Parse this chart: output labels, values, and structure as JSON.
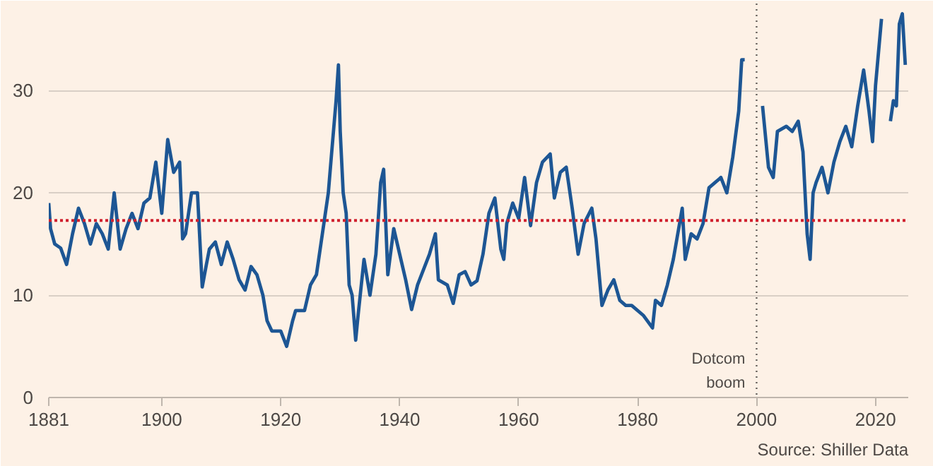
{
  "chart_data": {
    "type": "line",
    "annotations": [
      "Source: Shiller Data"
    ],
    "x": [
      1881,
      1881.3,
      1882,
      1883,
      1884,
      1885,
      1886,
      1887,
      1888,
      1889,
      1890,
      1891,
      1892,
      1893,
      1894,
      1895,
      1896,
      1897,
      1898,
      1899,
      1900,
      1901,
      1902,
      1903,
      1903.5,
      1904,
      1905,
      1906,
      1906.8,
      1907.5,
      1908,
      1909,
      1910,
      1911,
      1912,
      1913,
      1914,
      1915,
      1916,
      1917,
      1917.7,
      1918.5,
      1920,
      1921,
      1922,
      1922.5,
      1924,
      1925,
      1926,
      1927,
      1928,
      1928.5,
      1929.3,
      1929.7,
      1930,
      1930.5,
      1931,
      1931.5,
      1932,
      1932.6,
      1933,
      1934,
      1935,
      1936,
      1936.8,
      1937.3,
      1938,
      1939,
      1940,
      1941,
      1942,
      1943,
      1945,
      1946,
      1946.5,
      1948,
      1949,
      1950,
      1951,
      1952,
      1953,
      1954,
      1955,
      1956,
      1957,
      1957.5,
      1958,
      1959,
      1960,
      1961,
      1962,
      1963,
      1964,
      1965.3,
      1966,
      1967,
      1968,
      1969,
      1970,
      1971,
      1972.3,
      1973,
      1974,
      1975,
      1976,
      1977,
      1978,
      1979,
      1981,
      1982.5,
      1983,
      1984,
      1985,
      1986,
      1987.5,
      1988,
      1989,
      1990,
      1991,
      1992,
      1994,
      1995,
      1996,
      1997,
      1997.5,
      1998,
      1998.7,
      2000.5,
      2001,
      2002,
      2002.8,
      2003.5,
      2005,
      2006,
      2007,
      2007.8,
      2008.5,
      2009,
      2009.5,
      2010,
      2011,
      2012,
      2013,
      2014,
      2015,
      2016,
      2017,
      2018,
      2018.9,
      2019.5,
      2020,
      2021,
      2021.8,
      2022.5,
      2023,
      2023.5,
      2024,
      2024.5,
      2025
    ],
    "series": [
      {
        "color": "#1d5694",
        "values": [
          19,
          16.5,
          15,
          14.6,
          13,
          16,
          18.5,
          17,
          15,
          17,
          16,
          14.5,
          20,
          14.5,
          16.5,
          18,
          16.5,
          19,
          19.5,
          23,
          18,
          25.2,
          22,
          23,
          15.5,
          16,
          20,
          20,
          10.8,
          13,
          14.5,
          15.2,
          13,
          15.2,
          13.5,
          11.5,
          10.5,
          12.8,
          12,
          10,
          7.5,
          6.5,
          6.5,
          5,
          7.5,
          8.5,
          8.5,
          11,
          12,
          16,
          20,
          23.5,
          29,
          32.5,
          26,
          20,
          18,
          11,
          10,
          5.6,
          8,
          13.5,
          10,
          14,
          21,
          22.3,
          12,
          16.5,
          14,
          11.5,
          8.6,
          11,
          14,
          16,
          11.5,
          11,
          9.2,
          12,
          12.3,
          11,
          11.4,
          14,
          18,
          19.5,
          14.5,
          13.5,
          17,
          19,
          17.5,
          21.5,
          16.8,
          21,
          23,
          23.8,
          19.5,
          22,
          22.5,
          18.5,
          14,
          17,
          18.5,
          15.5,
          9,
          10.5,
          11.5,
          9.5,
          9,
          9,
          8,
          6.8,
          9.5,
          9,
          11,
          13.5,
          18.5,
          13.5,
          16,
          15.5,
          17,
          20.5,
          21.5,
          20,
          23.5,
          28,
          33,
          33,
          null,
          null,
          28.5,
          22.5,
          21.5,
          26,
          26.5,
          26,
          27,
          24,
          16,
          13.5,
          20,
          21,
          22.5,
          20,
          23,
          25,
          26.5,
          24.5,
          28.5,
          32,
          28,
          25,
          30.5,
          37,
          null,
          27,
          29,
          28.5,
          36.5,
          37.5,
          32.5
        ]
      }
    ],
    "xlim": [
      1881,
      2025.5
    ],
    "ylim": [
      0,
      38.5
    ],
    "xticks": [
      1881,
      1900,
      1920,
      1940,
      1960,
      1980,
      2000,
      2020
    ],
    "yticks": [
      0,
      10,
      20,
      30
    ],
    "grid": "y",
    "ref_lines": [
      {
        "axis": "y",
        "value": 17.3,
        "color": "#d0202e",
        "line_style": "dashed"
      },
      {
        "axis": "x",
        "value": 2000,
        "label": "Dotcom boom",
        "color": "#66605c",
        "line_style": "dotted"
      }
    ]
  }
}
